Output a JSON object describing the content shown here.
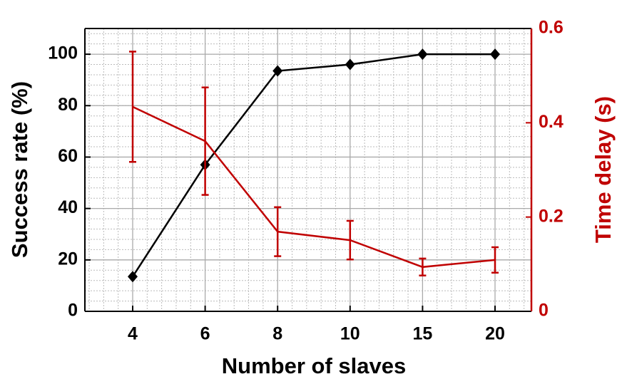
{
  "chart_data": {
    "type": "line",
    "xlabel": "Number of slaves",
    "ylabel": "Success rate (%)",
    "y2label": "Time delay (s)",
    "categories": [
      "4",
      "6",
      "8",
      "10",
      "15",
      "20"
    ],
    "ylim": [
      0,
      110
    ],
    "yticks": [
      0,
      20,
      40,
      60,
      80,
      100
    ],
    "y2lim": [
      0,
      0.6
    ],
    "y2ticks": [
      0,
      0.2,
      0.4,
      0.6
    ],
    "grid": true,
    "minor_grid": true,
    "series": [
      {
        "name": "Success rate",
        "color": "#000000",
        "marker": "diamond",
        "values": [
          13.5,
          57,
          93.5,
          96,
          100,
          100
        ]
      },
      {
        "name": "Time delay",
        "color": "#c00000",
        "axis": "y2",
        "values": [
          0.434,
          0.361,
          0.169,
          0.151,
          0.094,
          0.109
        ],
        "errors": [
          0.117,
          0.114,
          0.052,
          0.041,
          0.018,
          0.027
        ]
      }
    ]
  }
}
